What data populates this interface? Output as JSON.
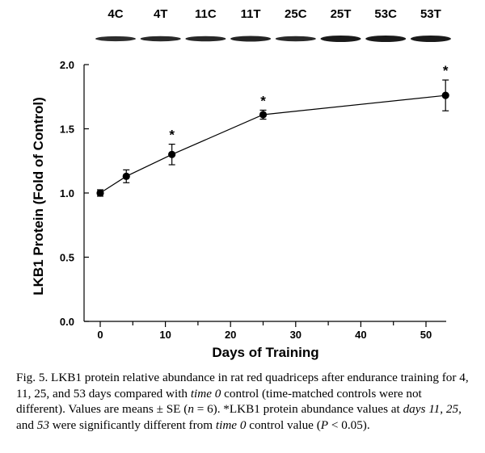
{
  "blot": {
    "lanes": [
      "4C",
      "4T",
      "11C",
      "11T",
      "25C",
      "25T",
      "53C",
      "53T"
    ],
    "band_intensity": [
      0.82,
      0.85,
      0.86,
      0.9,
      0.84,
      1.0,
      1.0,
      1.0
    ]
  },
  "chart_data": {
    "type": "line",
    "xlabel": "Days of Training",
    "ylabel": "LKB1 Protein (Fold of Control)",
    "xlim": [
      -3,
      55
    ],
    "ylim": [
      0,
      2.0
    ],
    "xticks": [
      0,
      10,
      20,
      30,
      40,
      50
    ],
    "yticks": [
      0.0,
      0.5,
      1.0,
      1.5,
      2.0
    ],
    "ytick_labels": [
      "0.0",
      "0.5",
      "1.0",
      "1.5",
      "2.0"
    ],
    "grid": false,
    "series": [
      {
        "x": [
          0,
          4,
          11,
          25,
          53
        ],
        "y": [
          1.0,
          1.13,
          1.3,
          1.61,
          1.76
        ],
        "se": [
          0.025,
          0.05,
          0.08,
          0.035,
          0.12
        ],
        "significant": [
          false,
          false,
          true,
          true,
          true
        ]
      }
    ],
    "annotation_symbol": "*"
  },
  "caption": {
    "prefix": "Fig. 5.  LKB1 protein relative abundance in rat red quadriceps after endurance training for 4, 11, 25, and 53 days compared with ",
    "em1": "time 0",
    "mid1": " control (time-matched controls were not different). Values are means ± SE (",
    "em2": "n",
    "mid2": " = 6). *LKB1 protein abundance values at ",
    "em3": "days 11",
    "mid3": ", ",
    "em4": "25",
    "mid4": ", and ",
    "em5": "53",
    "mid5": " were significantly different from ",
    "em6": "time 0",
    "mid6": " control value (",
    "em7": "P",
    "suffix": " < 0.05)."
  }
}
